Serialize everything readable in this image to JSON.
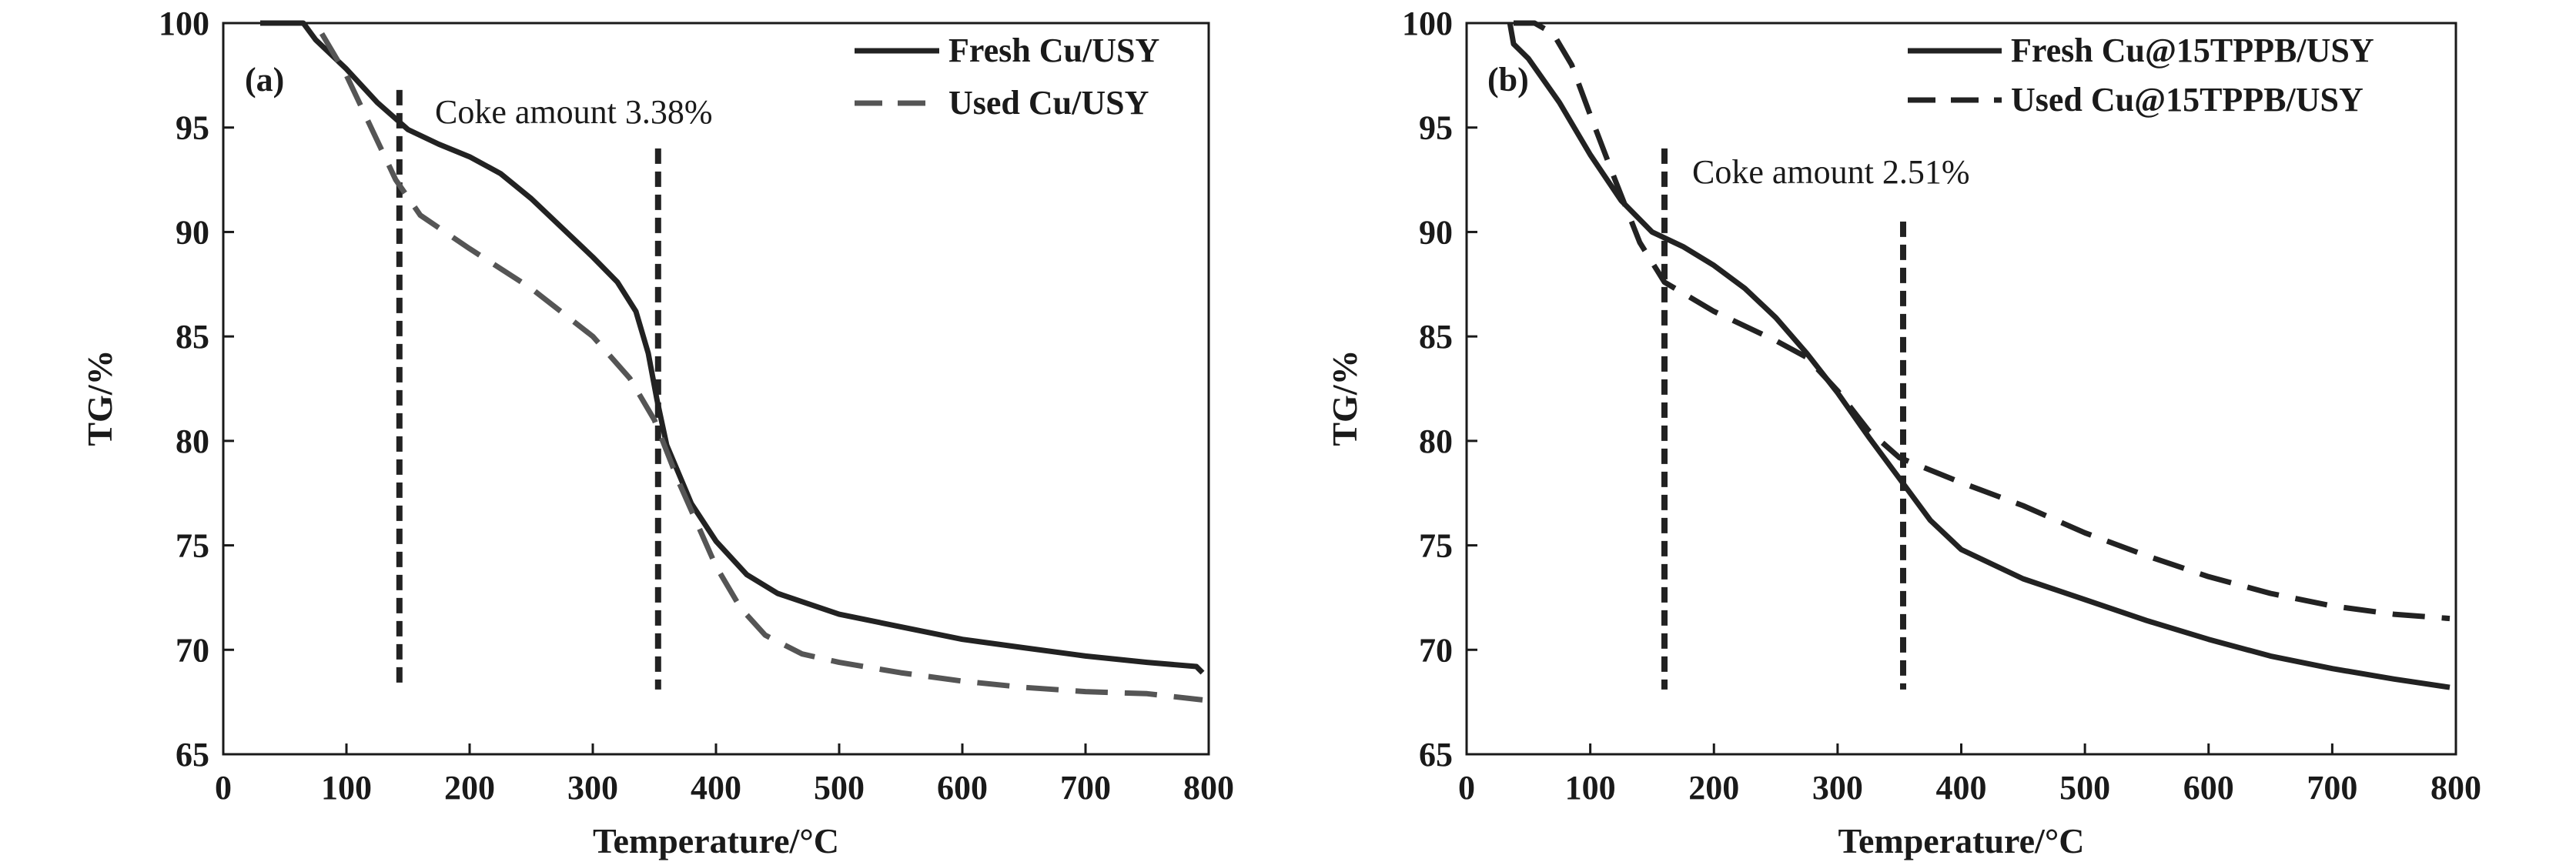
{
  "chart_data": [
    {
      "type": "line",
      "panel_label": "(a)",
      "xlabel": "Temperature/°C",
      "ylabel": "TG/%",
      "xlim": [
        0,
        800
      ],
      "ylim": [
        65,
        100
      ],
      "xticks": [
        "0",
        "100",
        "200",
        "300",
        "400",
        "500",
        "600",
        "700",
        "800"
      ],
      "yticks": [
        "65",
        "70",
        "75",
        "80",
        "85",
        "90",
        "95",
        "100"
      ],
      "annotation": "Coke amount 3.38%",
      "legend_position": "top-right",
      "grid": false,
      "series": [
        {
          "name": "Fresh Cu/USY",
          "style": "solid",
          "color": "#222222",
          "points": [
            [
              30,
              100
            ],
            [
              65,
              100
            ],
            [
              75,
              99.2
            ],
            [
              100,
              97.8
            ],
            [
              125,
              96.2
            ],
            [
              150,
              94.9
            ],
            [
              175,
              94.2
            ],
            [
              200,
              93.6
            ],
            [
              225,
              92.8
            ],
            [
              250,
              91.6
            ],
            [
              275,
              90.2
            ],
            [
              300,
              88.8
            ],
            [
              320,
              87.6
            ],
            [
              335,
              86.2
            ],
            [
              345,
              84.2
            ],
            [
              352,
              82.0
            ],
            [
              360,
              79.8
            ],
            [
              380,
              77.0
            ],
            [
              400,
              75.2
            ],
            [
              425,
              73.6
            ],
            [
              450,
              72.7
            ],
            [
              500,
              71.7
            ],
            [
              550,
              71.1
            ],
            [
              600,
              70.5
            ],
            [
              650,
              70.1
            ],
            [
              700,
              69.7
            ],
            [
              750,
              69.4
            ],
            [
              790,
              69.2
            ],
            [
              795,
              68.9
            ]
          ]
        },
        {
          "name": "Used Cu/USY",
          "style": "dashed",
          "color": "#555555",
          "points": [
            [
              80,
              99.5
            ],
            [
              100,
              97.5
            ],
            [
              120,
              95.0
            ],
            [
              140,
              92.5
            ],
            [
              160,
              90.8
            ],
            [
              200,
              89.2
            ],
            [
              250,
              87.3
            ],
            [
              300,
              85.0
            ],
            [
              330,
              83.0
            ],
            [
              350,
              81.0
            ],
            [
              370,
              78.0
            ],
            [
              400,
              74.0
            ],
            [
              420,
              72.0
            ],
            [
              440,
              70.7
            ],
            [
              470,
              69.8
            ],
            [
              500,
              69.4
            ],
            [
              550,
              68.9
            ],
            [
              600,
              68.5
            ],
            [
              650,
              68.2
            ],
            [
              700,
              68.0
            ],
            [
              750,
              67.9
            ],
            [
              795,
              67.6
            ]
          ]
        }
      ],
      "reference_lines_x": [
        143,
        353
      ]
    },
    {
      "type": "line",
      "panel_label": "(b)",
      "xlabel": "Temperature/°C",
      "ylabel": "TG/%",
      "xlim": [
        0,
        800
      ],
      "ylim": [
        65,
        100
      ],
      "xticks": [
        "0",
        "100",
        "200",
        "300",
        "400",
        "500",
        "600",
        "700",
        "800"
      ],
      "yticks": [
        "65",
        "70",
        "75",
        "80",
        "85",
        "90",
        "95",
        "100"
      ],
      "annotation": "Coke amount 2.51%",
      "legend_position": "top-right",
      "grid": false,
      "series": [
        {
          "name": "Fresh Cu@15TPPB/USY",
          "style": "solid",
          "color": "#222222",
          "points": [
            [
              35,
              100
            ],
            [
              38,
              99.0
            ],
            [
              50,
              98.3
            ],
            [
              75,
              96.2
            ],
            [
              100,
              93.7
            ],
            [
              125,
              91.5
            ],
            [
              150,
              90.0
            ],
            [
              175,
              89.3
            ],
            [
              200,
              88.4
            ],
            [
              225,
              87.3
            ],
            [
              250,
              85.9
            ],
            [
              275,
              84.2
            ],
            [
              300,
              82.3
            ],
            [
              325,
              80.2
            ],
            [
              350,
              78.2
            ],
            [
              375,
              76.2
            ],
            [
              400,
              74.8
            ],
            [
              450,
              73.4
            ],
            [
              500,
              72.4
            ],
            [
              550,
              71.4
            ],
            [
              600,
              70.5
            ],
            [
              650,
              69.7
            ],
            [
              700,
              69.1
            ],
            [
              750,
              68.6
            ],
            [
              795,
              68.2
            ]
          ]
        },
        {
          "name": "Used Cu@15TPPB/USY",
          "style": "dashed",
          "color": "#222222",
          "points": [
            [
              38,
              100
            ],
            [
              55,
              100
            ],
            [
              70,
              99.5
            ],
            [
              85,
              98.0
            ],
            [
              100,
              95.6
            ],
            [
              120,
              92.5
            ],
            [
              140,
              89.5
            ],
            [
              160,
              87.6
            ],
            [
              200,
              86.2
            ],
            [
              250,
              84.8
            ],
            [
              275,
              84.0
            ],
            [
              300,
              82.4
            ],
            [
              325,
              80.5
            ],
            [
              350,
              79.2
            ],
            [
              400,
              78.0
            ],
            [
              450,
              76.9
            ],
            [
              500,
              75.6
            ],
            [
              550,
              74.5
            ],
            [
              600,
              73.5
            ],
            [
              650,
              72.7
            ],
            [
              700,
              72.1
            ],
            [
              750,
              71.7
            ],
            [
              795,
              71.5
            ]
          ]
        }
      ],
      "reference_lines_x": [
        160,
        353
      ]
    }
  ]
}
